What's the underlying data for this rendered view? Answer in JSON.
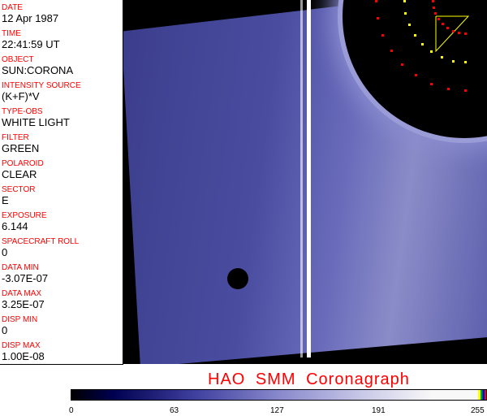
{
  "fields": [
    {
      "label": "DATE",
      "value": "12 Apr 1987"
    },
    {
      "label": "TIME",
      "value": "22:41:59 UT"
    },
    {
      "label": "OBJECT",
      "value": "SUN:CORONA"
    },
    {
      "label": "INTENSITY SOURCE",
      "value": "(K+F)*V"
    },
    {
      "label": "TYPE-OBS",
      "value": "WHITE LIGHT"
    },
    {
      "label": "FILTER",
      "value": "GREEN"
    },
    {
      "label": "POLAROID",
      "value": "CLEAR"
    },
    {
      "label": "SECTOR",
      "value": "E"
    },
    {
      "label": "EXPOSURE",
      "value": "6.144"
    },
    {
      "label": "SPACECRAFT ROLL",
      "value": "0"
    },
    {
      "label": "DATA MIN",
      "value": "-3.07E-07"
    },
    {
      "label": "DATA MAX",
      "value": "3.25E-07"
    },
    {
      "label": "DISP MIN",
      "value": "0"
    },
    {
      "label": "DISP MAX",
      "value": "1.00E-08"
    }
  ],
  "title": "HAO  SMM Coronagraph",
  "colorbar": {
    "ticks": [
      "0",
      "63",
      "127",
      "191",
      "255"
    ],
    "colors": [
      "#000000",
      "#000050",
      "#8888cc",
      "#f8f8f8",
      "#ffff00",
      "#00aa00",
      "#0000ff",
      "#ff0000"
    ]
  }
}
